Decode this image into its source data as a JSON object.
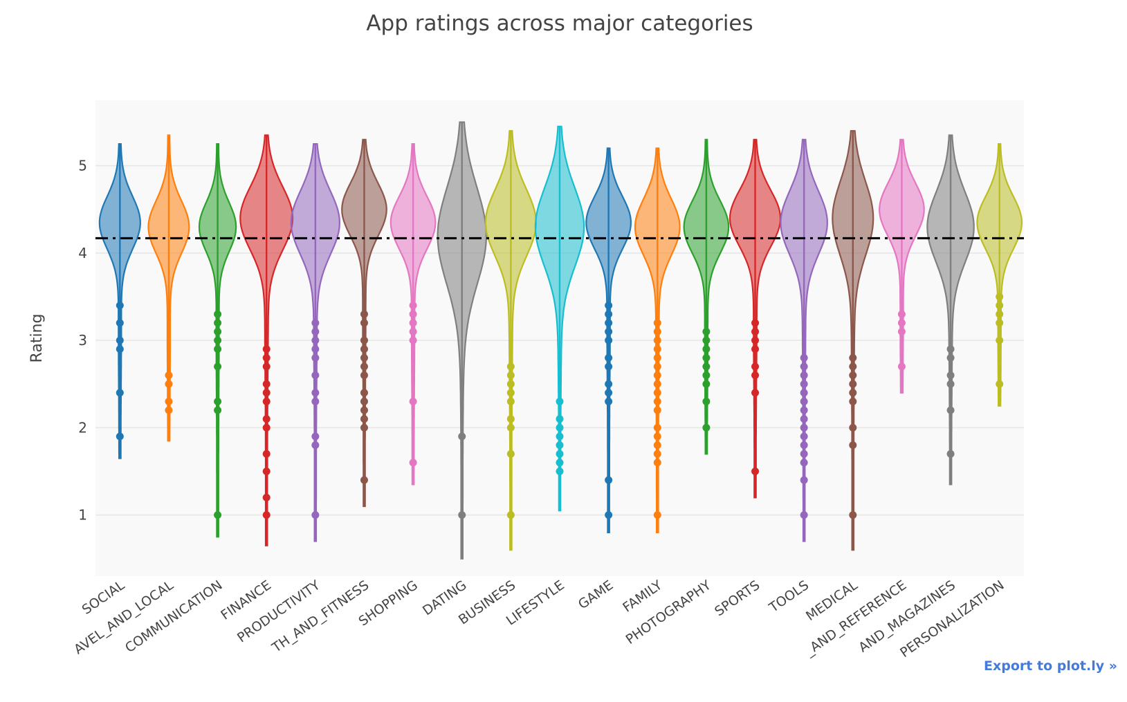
{
  "export_link": "Export to plot.ly »",
  "chart_data": {
    "type": "violin",
    "title": "App ratings across major categories",
    "xlabel": "",
    "ylabel": "Rating",
    "ylim": [
      0.3,
      5.75
    ],
    "yticks": [
      1,
      2,
      3,
      4,
      5
    ],
    "grid": true,
    "legend": "none",
    "reference_line": {
      "y": 4.17,
      "style": "dash-dot",
      "color": "#000000"
    },
    "categories": [
      "SOCIAL",
      "TRAVEL_AND_LOCAL",
      "COMMUNICATION",
      "FINANCE",
      "PRODUCTIVITY",
      "HEALTH_AND_FITNESS",
      "SHOPPING",
      "DATING",
      "BUSINESS",
      "LIFESTYLE",
      "GAME",
      "FAMILY",
      "PHOTOGRAPHY",
      "SPORTS",
      "TOOLS",
      "MEDICAL",
      "BOOKS_AND_REFERENCE",
      "NEWS_AND_MAGAZINES",
      "PERSONALIZATION"
    ],
    "tick_labels": [
      "SOCIAL",
      "AVEL_AND_LOCAL",
      "COMMUNICATION",
      "FINANCE",
      "PRODUCTIVITY",
      "TH_AND_FITNESS",
      "SHOPPING",
      "DATING",
      "BUSINESS",
      "LIFESTYLE",
      "GAME",
      "FAMILY",
      "PHOTOGRAPHY",
      "SPORTS",
      "TOOLS",
      "MEDICAL",
      "_AND_REFERENCE",
      "AND_MAGAZINES",
      "PERSONALIZATION"
    ],
    "series": [
      {
        "color": "#1f77b4",
        "min": 1.65,
        "max": 5.25,
        "peak": 4.35,
        "halfwidth": 0.4,
        "spread": 0.3,
        "outliers": [
          3.4,
          3.2,
          3.0,
          2.9,
          2.4,
          1.9
        ]
      },
      {
        "color": "#ff7f0e",
        "min": 1.85,
        "max": 5.35,
        "peak": 4.3,
        "halfwidth": 0.4,
        "spread": 0.3,
        "outliers": [
          2.6,
          2.5,
          2.3,
          2.2
        ]
      },
      {
        "color": "#2ca02c",
        "min": 0.75,
        "max": 5.25,
        "peak": 4.3,
        "halfwidth": 0.36,
        "spread": 0.28,
        "outliers": [
          3.3,
          3.2,
          3.1,
          3.0,
          2.9,
          2.7,
          2.3,
          2.2,
          1.0
        ]
      },
      {
        "color": "#d62728",
        "min": 0.65,
        "max": 5.35,
        "peak": 4.4,
        "halfwidth": 0.52,
        "spread": 0.36,
        "outliers": [
          2.9,
          2.8,
          2.7,
          2.5,
          2.4,
          2.3,
          2.1,
          2.0,
          1.7,
          1.5,
          1.2,
          1.0
        ]
      },
      {
        "color": "#9467bd",
        "min": 0.7,
        "max": 5.25,
        "peak": 4.35,
        "halfwidth": 0.48,
        "spread": 0.36,
        "outliers": [
          3.2,
          3.1,
          3.0,
          2.9,
          2.8,
          2.6,
          2.4,
          2.3,
          1.9,
          1.8,
          1.0
        ]
      },
      {
        "color": "#8c564b",
        "min": 1.1,
        "max": 5.3,
        "peak": 4.5,
        "halfwidth": 0.44,
        "spread": 0.3,
        "outliers": [
          3.3,
          3.2,
          3.0,
          2.9,
          2.8,
          2.7,
          2.6,
          2.4,
          2.3,
          2.2,
          2.1,
          2.0,
          1.4
        ]
      },
      {
        "color": "#e377c2",
        "min": 1.35,
        "max": 5.25,
        "peak": 4.35,
        "halfwidth": 0.44,
        "spread": 0.3,
        "outliers": [
          3.4,
          3.3,
          3.2,
          3.1,
          3.0,
          2.3,
          1.6
        ]
      },
      {
        "color": "#7f7f7f",
        "min": 0.5,
        "max": 5.5,
        "peak": 4.2,
        "halfwidth": 0.48,
        "spread": 0.55,
        "outliers": [
          1.9,
          1.0
        ]
      },
      {
        "color": "#bcbd22",
        "min": 0.6,
        "max": 5.4,
        "peak": 4.35,
        "halfwidth": 0.5,
        "spread": 0.38,
        "outliers": [
          2.7,
          2.6,
          2.5,
          2.4,
          2.3,
          2.1,
          2.0,
          1.7,
          1.0
        ]
      },
      {
        "color": "#17becf",
        "min": 1.05,
        "max": 5.45,
        "peak": 4.3,
        "halfwidth": 0.48,
        "spread": 0.45,
        "outliers": [
          2.3,
          2.1,
          2.0,
          1.9,
          1.8,
          1.7,
          1.6,
          1.5
        ]
      },
      {
        "color": "#1f77b4",
        "min": 0.8,
        "max": 5.2,
        "peak": 4.35,
        "halfwidth": 0.44,
        "spread": 0.3,
        "outliers": [
          3.4,
          3.3,
          3.2,
          3.1,
          3.0,
          2.8,
          2.7,
          2.5,
          2.4,
          2.3,
          1.4,
          1.0
        ]
      },
      {
        "color": "#ff7f0e",
        "min": 0.8,
        "max": 5.2,
        "peak": 4.3,
        "halfwidth": 0.44,
        "spread": 0.32,
        "outliers": [
          3.2,
          3.1,
          3.0,
          2.9,
          2.8,
          2.7,
          2.6,
          2.5,
          2.4,
          2.3,
          2.2,
          2.0,
          1.9,
          1.8,
          1.7,
          1.6,
          1.0
        ]
      },
      {
        "color": "#2ca02c",
        "min": 1.7,
        "max": 5.3,
        "peak": 4.3,
        "halfwidth": 0.44,
        "spread": 0.3,
        "outliers": [
          3.1,
          3.0,
          2.9,
          2.8,
          2.7,
          2.6,
          2.5,
          2.3,
          2.0
        ]
      },
      {
        "color": "#d62728",
        "min": 1.2,
        "max": 5.3,
        "peak": 4.4,
        "halfwidth": 0.5,
        "spread": 0.32,
        "outliers": [
          3.2,
          3.1,
          3.0,
          2.9,
          2.7,
          2.6,
          2.4,
          1.5
        ]
      },
      {
        "color": "#9467bd",
        "min": 0.7,
        "max": 5.3,
        "peak": 4.35,
        "halfwidth": 0.46,
        "spread": 0.36,
        "outliers": [
          2.8,
          2.7,
          2.6,
          2.5,
          2.4,
          2.3,
          2.2,
          2.1,
          2.0,
          1.9,
          1.8,
          1.7,
          1.6,
          1.4,
          1.0
        ]
      },
      {
        "color": "#8c564b",
        "min": 0.6,
        "max": 5.4,
        "peak": 4.4,
        "halfwidth": 0.4,
        "spread": 0.42,
        "outliers": [
          2.8,
          2.7,
          2.6,
          2.5,
          2.4,
          2.3,
          2.0,
          1.8,
          1.0
        ]
      },
      {
        "color": "#e377c2",
        "min": 2.4,
        "max": 5.3,
        "peak": 4.5,
        "halfwidth": 0.44,
        "spread": 0.3,
        "outliers": [
          3.3,
          3.2,
          3.1,
          2.7
        ]
      },
      {
        "color": "#7f7f7f",
        "min": 1.35,
        "max": 5.35,
        "peak": 4.3,
        "halfwidth": 0.46,
        "spread": 0.4,
        "outliers": [
          2.9,
          2.8,
          2.6,
          2.5,
          2.2,
          1.7
        ]
      },
      {
        "color": "#bcbd22",
        "min": 2.25,
        "max": 5.25,
        "peak": 4.35,
        "halfwidth": 0.44,
        "spread": 0.3,
        "outliers": [
          3.5,
          3.4,
          3.3,
          3.2,
          3.0,
          2.5
        ]
      }
    ]
  }
}
